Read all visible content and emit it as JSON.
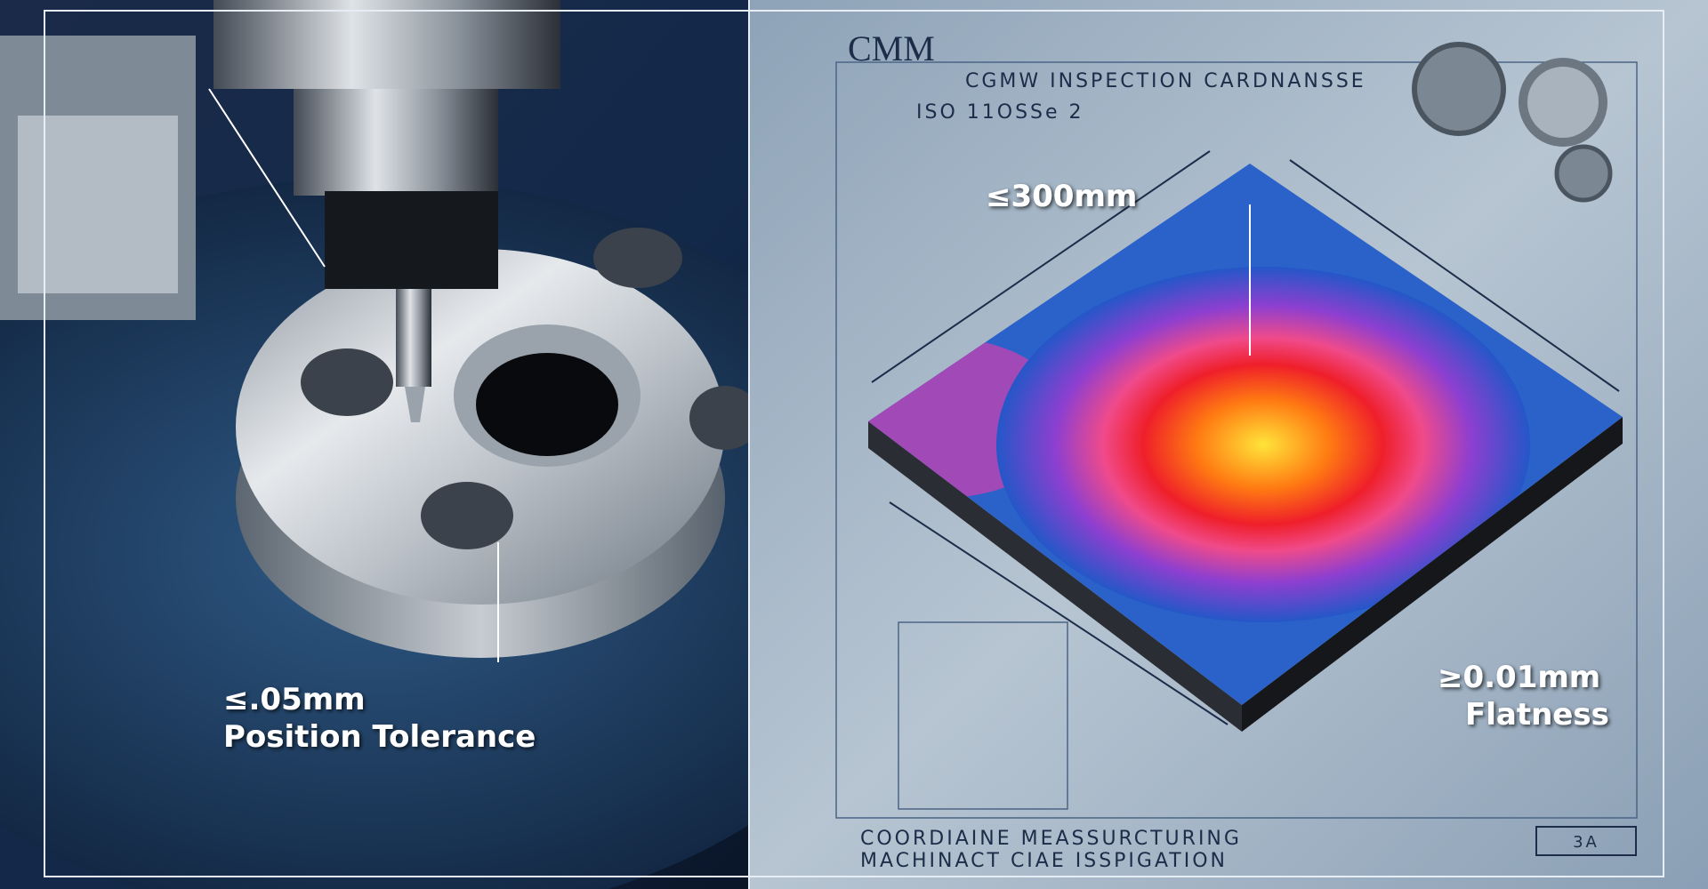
{
  "header": {
    "title": "CMM",
    "subtitle": "CGMW INSPECTION CARDNANSSE",
    "standard": "ISO 11OSSe 2"
  },
  "annotations": {
    "left": {
      "value": "≤.05mm",
      "label": "Position Tolerance"
    },
    "length": "≤300mm",
    "right": {
      "value": "≥0.01mm",
      "label": "Flatness"
    }
  },
  "footer": {
    "line1": "COORDIAINE MEASSURCTURING",
    "line2": "MACHINACT CIAE ISSPIGATION",
    "code": "3A"
  }
}
